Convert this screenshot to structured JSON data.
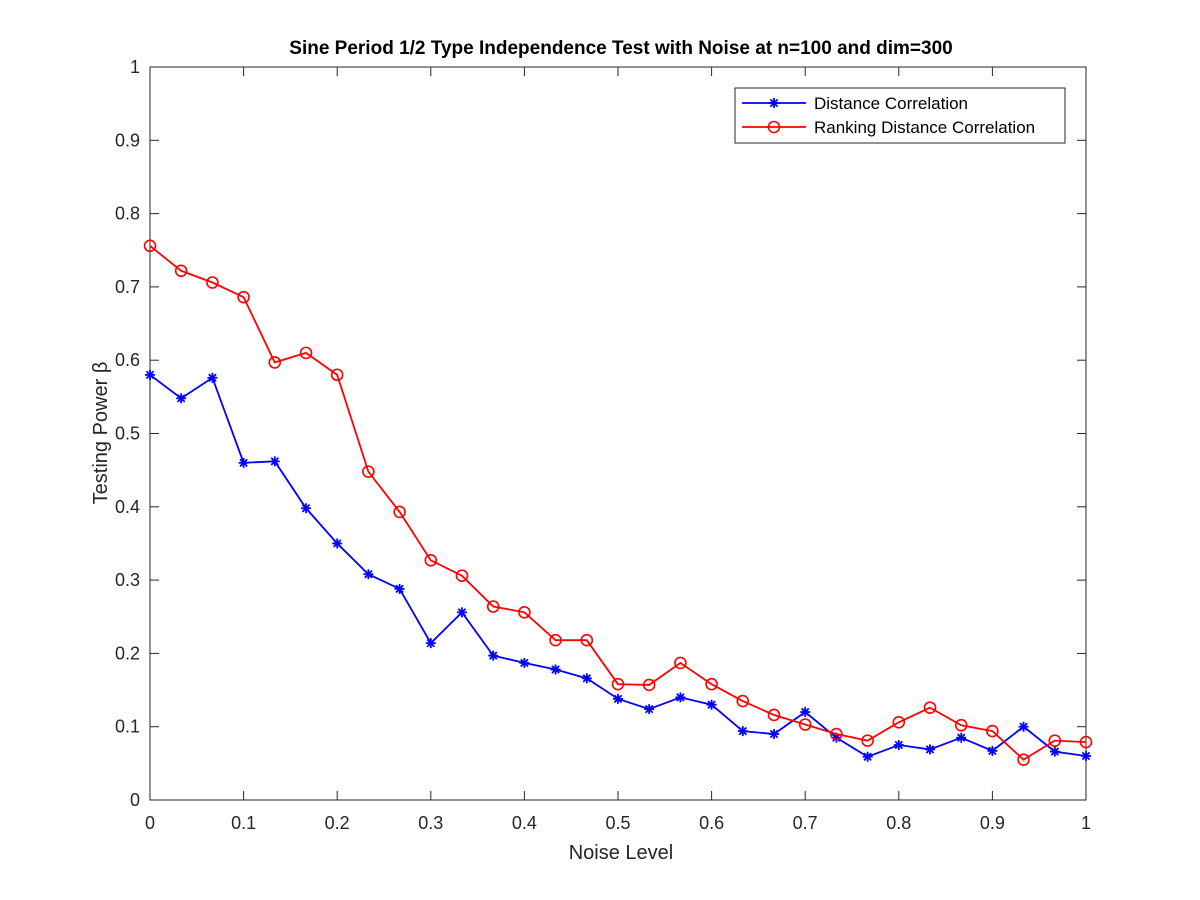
{
  "chart_data": {
    "type": "line",
    "title": "Sine Period 1/2 Type Independence Test with Noise at n=100 and dim=300",
    "xlabel": "Noise Level",
    "ylabel": "Testing Power β",
    "xlim": [
      0,
      1
    ],
    "ylim": [
      0,
      1
    ],
    "xticks": [
      "0",
      "0.1",
      "0.2",
      "0.3",
      "0.4",
      "0.5",
      "0.6",
      "0.7",
      "0.8",
      "0.9",
      "1"
    ],
    "yticks": [
      "0",
      "0.1",
      "0.2",
      "0.3",
      "0.4",
      "0.5",
      "0.6",
      "0.7",
      "0.8",
      "0.9",
      "1"
    ],
    "grid": false,
    "legend_position": "top-right",
    "x": [
      0.0,
      0.0333,
      0.0667,
      0.1,
      0.1333,
      0.1667,
      0.2,
      0.2333,
      0.2667,
      0.3,
      0.3333,
      0.3667,
      0.4,
      0.4333,
      0.4667,
      0.5,
      0.5333,
      0.5667,
      0.6,
      0.6333,
      0.6667,
      0.7,
      0.7333,
      0.7667,
      0.8,
      0.8333,
      0.8667,
      0.9,
      0.9333,
      0.9667,
      1.0
    ],
    "series": [
      {
        "name": "Distance Correlation",
        "color": "#0000ff",
        "marker": "asterisk",
        "values": [
          0.58,
          0.548,
          0.576,
          0.46,
          0.462,
          0.398,
          0.35,
          0.308,
          0.288,
          0.214,
          0.256,
          0.197,
          0.187,
          0.178,
          0.166,
          0.138,
          0.124,
          0.14,
          0.13,
          0.094,
          0.09,
          0.12,
          0.085,
          0.059,
          0.075,
          0.069,
          0.085,
          0.067,
          0.1,
          0.066,
          0.06
        ]
      },
      {
        "name": "Ranking Distance Correlation",
        "color": "#ff0000",
        "marker": "circle",
        "values": [
          0.756,
          0.722,
          0.706,
          0.686,
          0.597,
          0.61,
          0.58,
          0.448,
          0.393,
          0.327,
          0.306,
          0.264,
          0.256,
          0.218,
          0.218,
          0.158,
          0.157,
          0.187,
          0.158,
          0.135,
          0.116,
          0.103,
          0.09,
          0.081,
          0.106,
          0.126,
          0.102,
          0.094,
          0.055,
          0.081,
          0.079
        ]
      }
    ]
  }
}
